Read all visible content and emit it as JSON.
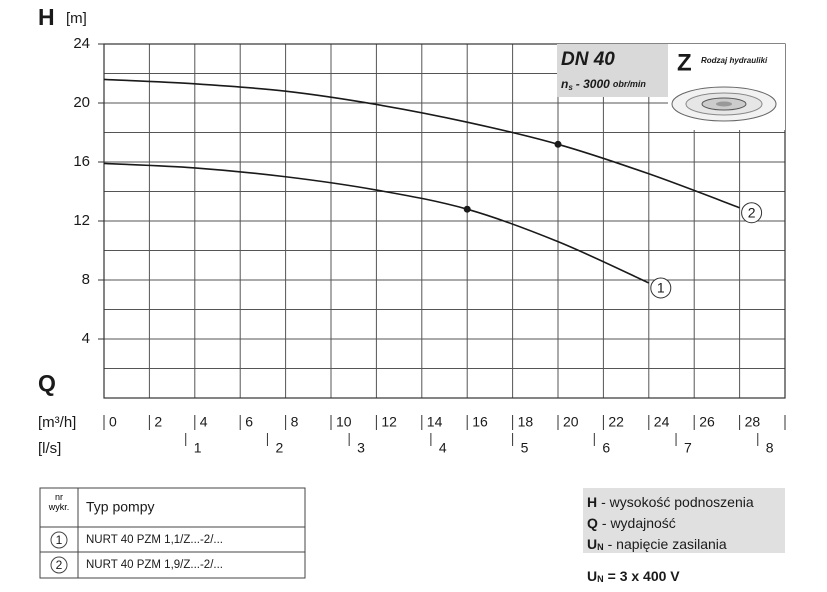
{
  "chart_data": {
    "type": "line",
    "y_symbol": "H",
    "y_unit": "[m]",
    "x_symbol": "Q",
    "x_unit": "[m³/h]",
    "x2_unit": "[l/s]",
    "xlim": [
      0,
      30
    ],
    "ylim": [
      0,
      24
    ],
    "yticks": [
      4,
      8,
      12,
      16,
      20,
      24
    ],
    "minor_yticks": [
      2,
      6,
      10,
      14,
      18,
      22
    ],
    "xticks": [
      0,
      2,
      4,
      6,
      8,
      10,
      12,
      14,
      16,
      18,
      20,
      22,
      24,
      26,
      28
    ],
    "x2ticks": [
      {
        "value": 3.6,
        "label": "1"
      },
      {
        "value": 7.2,
        "label": "2"
      },
      {
        "value": 10.8,
        "label": "3"
      },
      {
        "value": 14.4,
        "label": "4"
      },
      {
        "value": 18,
        "label": "5"
      },
      {
        "value": 21.6,
        "label": "6"
      },
      {
        "value": 25.2,
        "label": "7"
      },
      {
        "value": 28.8,
        "label": "8"
      }
    ],
    "grid": true,
    "series": [
      {
        "name": "1",
        "color": "#1a1a1a",
        "x": [
          0,
          4,
          8,
          12,
          16,
          20,
          24
        ],
        "values": [
          15.9,
          15.6,
          15.0,
          14.1,
          12.8,
          10.6,
          7.8
        ],
        "point_x": 16,
        "point_y": 12.8
      },
      {
        "name": "2",
        "color": "#1a1a1a",
        "x": [
          0,
          4,
          8,
          12,
          16,
          20,
          24,
          28
        ],
        "values": [
          21.6,
          21.3,
          20.8,
          19.9,
          18.7,
          17.2,
          15.2,
          12.9
        ],
        "point_x": 20,
        "point_y": 17.2
      }
    ],
    "info_box": {
      "title": "DN 40",
      "speed_symbol": "n",
      "speed_sub": "s",
      "speed": "- 3000",
      "speed_unit": "obr/min",
      "hydraulics_symbol": "Z",
      "hydraulics_label": "Rodzaj hydrauliki"
    }
  },
  "table": {
    "header": [
      "nr wykr.",
      "Typ pompy"
    ],
    "rows": [
      [
        "1",
        "NURT 40 PZM 1,1/Z...-2/..."
      ],
      [
        "2",
        "NURT 40 PZM 1,9/Z...-2/..."
      ]
    ]
  },
  "notes": [
    {
      "symbol": "H",
      "text": "- wysokość podnoszenia"
    },
    {
      "symbol": "Q",
      "text": "- wydajność"
    },
    {
      "symbol": "U",
      "sub": "N",
      "text": "- napięcie zasilania"
    }
  ],
  "voltage": {
    "symbol": "U",
    "sub": "N",
    "text": "= 3 x 400 V"
  }
}
